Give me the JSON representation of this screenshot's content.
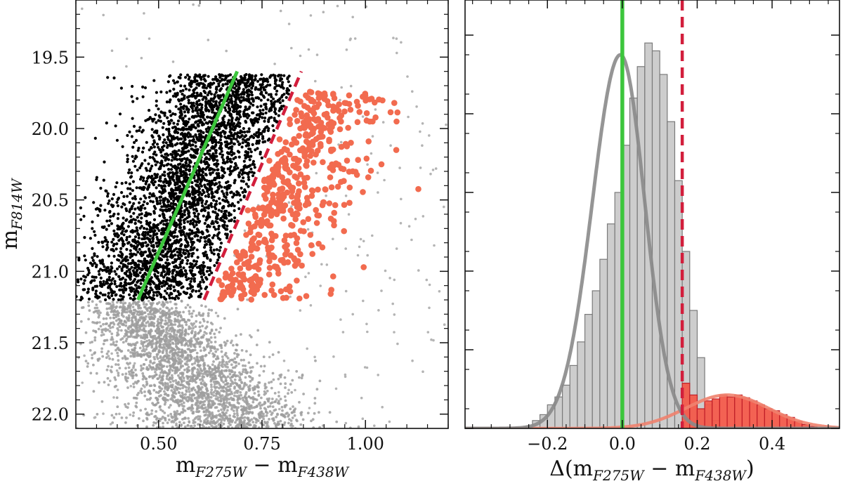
{
  "chart_data": [
    {
      "panel": "left",
      "type": "scatter",
      "title": "",
      "xlabel": {
        "base": "m",
        "sub1": "F275W",
        "mid": " − m",
        "sub2": "F438W"
      },
      "ylabel": {
        "base": "m",
        "sub": "F814W"
      },
      "xlim": [
        0.3,
        1.2
      ],
      "ylim": [
        22.1,
        19.1
      ],
      "y_inverted": true,
      "xticks": [
        0.5,
        0.75,
        1.0
      ],
      "xtick_labels": [
        "0.50",
        "0.75",
        "1.00"
      ],
      "yticks": [
        19.5,
        20.0,
        20.5,
        21.0,
        21.5,
        22.0
      ],
      "ytick_labels": [
        "19.5",
        "20.0",
        "20.5",
        "21.0",
        "21.5",
        "22.0"
      ],
      "selection_box": {
        "mag_min": 19.62,
        "mag_max": 21.2
      },
      "fiducial_line": {
        "color": "#3cc63c",
        "style": "solid",
        "points": [
          [
            0.45,
            21.2
          ],
          [
            0.69,
            19.6
          ]
        ]
      },
      "separator_line": {
        "color": "#d21e3c",
        "style": "dashed",
        "points": [
          [
            0.61,
            21.2
          ],
          [
            0.845,
            19.6
          ]
        ]
      },
      "series": [
        {
          "name": "field (all stars)",
          "color": "#9e9e9e",
          "marker": "small dot"
        },
        {
          "name": "selected stars (left of separator)",
          "color": "#000000",
          "marker": "dot"
        },
        {
          "name": "selected stars (right of separator)",
          "color": "#f26b4f",
          "marker": "circle"
        }
      ]
    },
    {
      "panel": "right",
      "type": "histogram",
      "title": "",
      "xlabel": {
        "pre": "Δ(m",
        "sub1": "F275W",
        "mid": " − m",
        "sub2": "F438W",
        "post": ")"
      },
      "ylabel": "",
      "xlim": [
        -0.42,
        0.58
      ],
      "ylim": [
        0,
        1.0
      ],
      "xticks": [
        -0.2,
        0.0,
        0.2,
        0.4
      ],
      "xtick_labels": [
        "−0.2",
        "0.0",
        "0.2",
        "0.4"
      ],
      "vline_solid": {
        "x": 0.0,
        "color": "#3cc63c"
      },
      "vline_dashed": {
        "x": 0.16,
        "color": "#d21e3c"
      },
      "bins_gray": {
        "start": -0.26,
        "width": 0.02,
        "counts": [
          0.005,
          0.02,
          0.035,
          0.06,
          0.08,
          0.11,
          0.16,
          0.22,
          0.29,
          0.35,
          0.43,
          0.52,
          0.6,
          0.72,
          0.84,
          0.92,
          0.98,
          0.96,
          0.9,
          0.78,
          0.63,
          0.45,
          0.3,
          0.18,
          0.06,
          0.02
        ]
      },
      "bins_red": {
        "start": 0.16,
        "width": 0.02,
        "counts": [
          0.115,
          0.085,
          0.05,
          0.07,
          0.075,
          0.085,
          0.08,
          0.085,
          0.078,
          0.07,
          0.06,
          0.05,
          0.045,
          0.035,
          0.028,
          0.018,
          0.01,
          0.005
        ]
      },
      "fit_gray": {
        "amp": 0.95,
        "mu": -0.005,
        "sigma_left": 0.075,
        "sigma_right": 0.065,
        "color": "#8a8a8a"
      },
      "fit_red": {
        "amp": 0.085,
        "mu": 0.28,
        "sigma": 0.11,
        "color": "#f0826e"
      },
      "colors": {
        "gray_fill": "#c8c8c8",
        "gray_edge": "#7a7a7a",
        "red_fill": "#f25a4a",
        "red_edge": "#c01e28"
      }
    }
  ]
}
